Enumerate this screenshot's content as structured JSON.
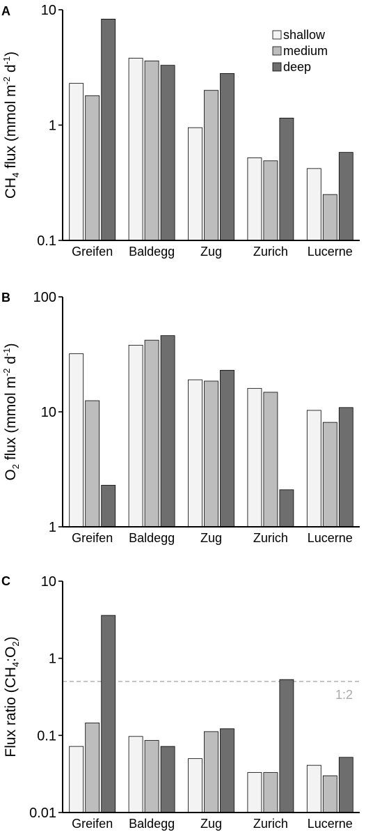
{
  "colors": {
    "shallow": "#f3f3f3",
    "medium": "#bdbdbd",
    "deep": "#6e6e6e",
    "refline": "#aaaaaa",
    "annotation": "#aaaaaa"
  },
  "chart_data": [
    {
      "type": "bar",
      "panel": "A",
      "scale": "log",
      "ylim": [
        0.1,
        10
      ],
      "yticks": [
        {
          "v": 0.1,
          "label": "0.1"
        },
        {
          "v": 1,
          "label": "1"
        },
        {
          "v": 10,
          "label": "10"
        }
      ],
      "ylabel": {
        "pre": "CH",
        "sub": "4",
        "post": " flux (mmol m",
        "sup1": "-2",
        "mid": " d",
        "sup2": "-1",
        "end": ")"
      },
      "categories": [
        "Greifen",
        "Baldegg",
        "Zug",
        "Zurich",
        "Lucerne"
      ],
      "series": [
        {
          "name": "shallow",
          "values": [
            2.3,
            3.8,
            0.95,
            0.52,
            0.42
          ]
        },
        {
          "name": "medium",
          "values": [
            1.8,
            3.6,
            2.0,
            0.49,
            0.25
          ]
        },
        {
          "name": "deep",
          "values": [
            8.3,
            3.3,
            2.8,
            1.15,
            0.58
          ]
        }
      ],
      "legend": {
        "position": "top-right",
        "entries": [
          "shallow",
          "medium",
          "deep"
        ]
      }
    },
    {
      "type": "bar",
      "panel": "B",
      "scale": "log",
      "ylim": [
        1,
        100
      ],
      "yticks": [
        {
          "v": 1,
          "label": "1"
        },
        {
          "v": 10,
          "label": "10"
        },
        {
          "v": 100,
          "label": "100"
        }
      ],
      "ylabel": {
        "pre": "O",
        "sub": "2",
        "post": " flux (mmol m",
        "sup1": "-2",
        "mid": " d",
        "sup2": "-1",
        "end": ")"
      },
      "categories": [
        "Greifen",
        "Baldegg",
        "Zug",
        "Zurich",
        "Lucerne"
      ],
      "series": [
        {
          "name": "shallow",
          "values": [
            32,
            38,
            19,
            16,
            10.3
          ]
        },
        {
          "name": "medium",
          "values": [
            12.5,
            42,
            18.5,
            14.8,
            8.1
          ]
        },
        {
          "name": "deep",
          "values": [
            2.3,
            46,
            23,
            2.1,
            10.9
          ]
        }
      ]
    },
    {
      "type": "bar",
      "panel": "C",
      "scale": "log",
      "ylim": [
        0.01,
        10
      ],
      "yticks": [
        {
          "v": 0.01,
          "label": "0.01"
        },
        {
          "v": 0.1,
          "label": "0.1"
        },
        {
          "v": 1,
          "label": "1"
        },
        {
          "v": 10,
          "label": "10"
        }
      ],
      "ylabel": {
        "pre": "Flux ratio (CH",
        "sub": "4",
        "post": ":O",
        "sub2": "2",
        "end": ")"
      },
      "categories": [
        "Greifen",
        "Baldegg",
        "Zug",
        "Zurich",
        "Lucerne"
      ],
      "series": [
        {
          "name": "shallow",
          "values": [
            0.072,
            0.097,
            0.05,
            0.033,
            0.041
          ]
        },
        {
          "name": "medium",
          "values": [
            0.145,
            0.086,
            0.112,
            0.033,
            0.03
          ]
        },
        {
          "name": "deep",
          "values": [
            3.6,
            0.072,
            0.122,
            0.53,
            0.052
          ]
        }
      ],
      "reference_line": {
        "value": 0.5,
        "style": "dashed",
        "label": "1:2"
      }
    }
  ]
}
